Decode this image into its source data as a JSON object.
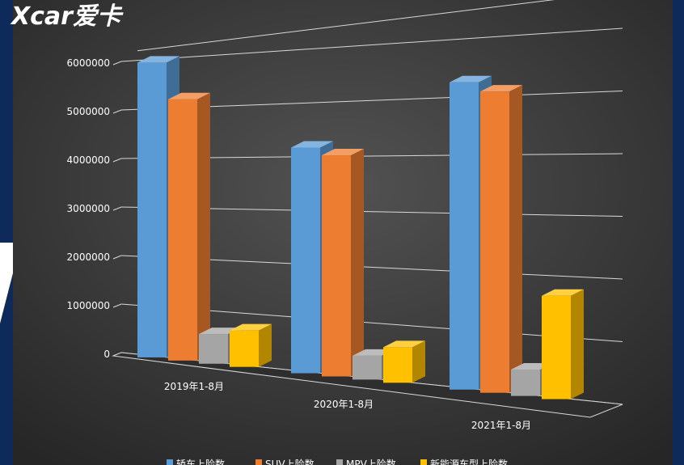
{
  "watermark": {
    "logo": "Xcar爱卡"
  },
  "chart_data": {
    "type": "bar",
    "categories": [
      "2019年1-8月",
      "2020年1-8月",
      "2021年1-8月"
    ],
    "series": [
      {
        "name": "轿车上险数",
        "color": "#5b9bd5",
        "values": [
          5970000,
          4200000,
          5280000
        ]
      },
      {
        "name": "SUV上险数",
        "color": "#ed7d31",
        "values": [
          5200000,
          4050000,
          5100000
        ]
      },
      {
        "name": "MPV上险数",
        "color": "#a5a5a5",
        "values": [
          580000,
          430000,
          440000
        ]
      },
      {
        "name": "新能源车型上险数",
        "color": "#ffc000",
        "values": [
          700000,
          630000,
          1700000
        ]
      }
    ],
    "yticks": [
      "0",
      "1000000",
      "2000000",
      "3000000",
      "4000000",
      "5000000",
      "6000000"
    ],
    "ylim": [
      0,
      6000000
    ],
    "grid": true,
    "legend": "bottom",
    "background": "#404040"
  }
}
